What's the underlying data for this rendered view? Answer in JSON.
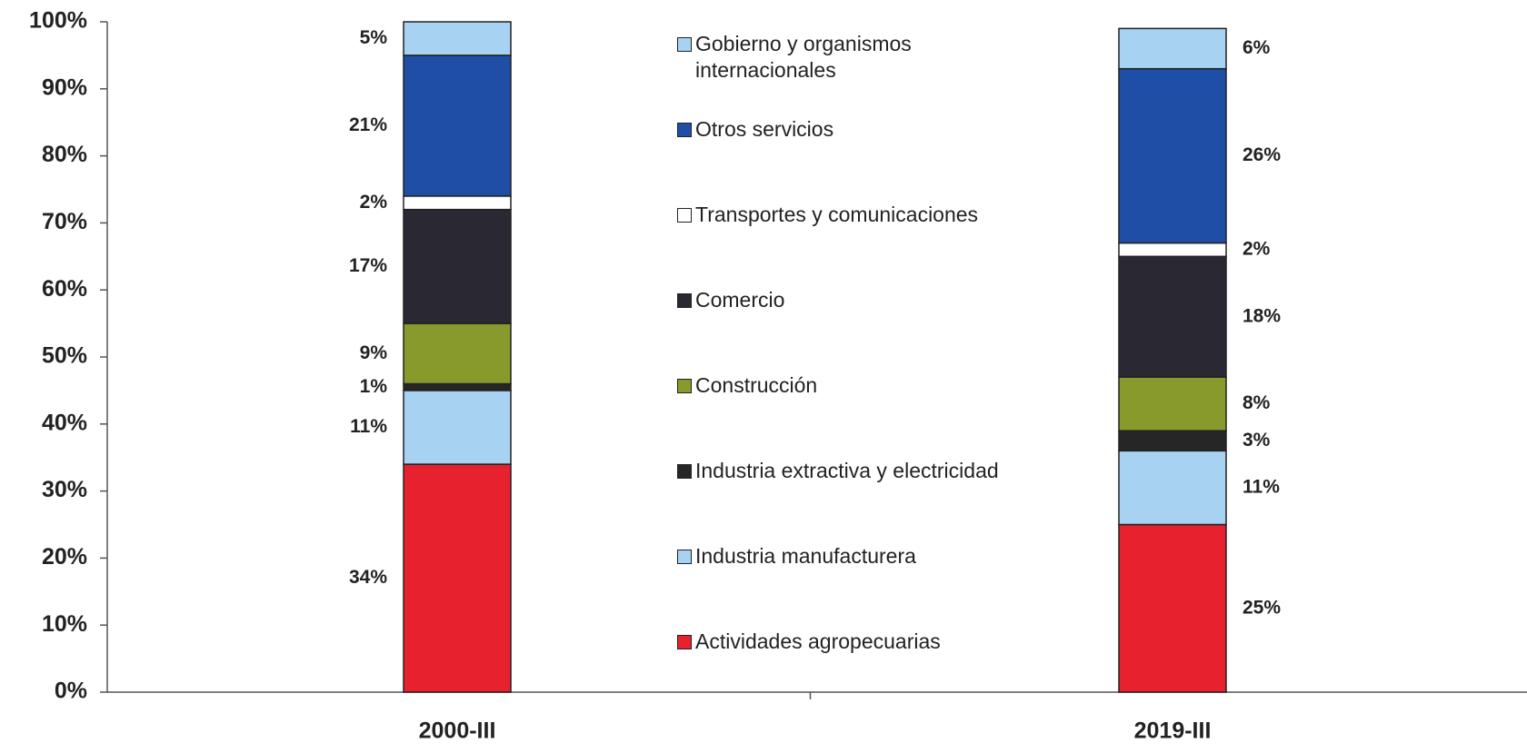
{
  "chart_data": {
    "type": "stacked-bar",
    "categories": [
      "2000-III",
      "2019-III"
    ],
    "series": [
      {
        "name": "Actividades agropecuarias",
        "color": "#e8212f",
        "values": [
          34,
          25
        ],
        "value_labels": [
          "34%",
          "25%"
        ]
      },
      {
        "name": "Industria manufacturera",
        "color": "#a8d2f1",
        "values": [
          11,
          11
        ],
        "value_labels": [
          "11%",
          "11%"
        ]
      },
      {
        "name": "Industria extractiva y electricidad",
        "color": "#262626",
        "values": [
          1,
          3
        ],
        "value_labels": [
          "1%",
          "3%"
        ]
      },
      {
        "name": "Construcción",
        "color": "#889a2c",
        "values": [
          9,
          8
        ],
        "value_labels": [
          "9%",
          "8%"
        ]
      },
      {
        "name": "Comercio",
        "color": "#2a2833",
        "values": [
          17,
          18
        ],
        "value_labels": [
          "17%",
          "18%"
        ]
      },
      {
        "name": "Transportes y comunicaciones",
        "color": "#ffffff",
        "values": [
          2,
          2
        ],
        "value_labels": [
          "2%",
          "2%"
        ]
      },
      {
        "name": "Otros servicios",
        "color": "#1f4ea6",
        "values": [
          21,
          26
        ],
        "value_labels": [
          "21%",
          "26%"
        ]
      },
      {
        "name": "Gobierno y organismos\ninternacionales",
        "color": "#a8d2f1",
        "values": [
          5,
          6
        ],
        "value_labels": [
          "5%",
          "6%"
        ]
      }
    ],
    "ylim": [
      0,
      100
    ],
    "yticks": [
      {
        "value": 0,
        "label": "0%"
      },
      {
        "value": 10,
        "label": "10%"
      },
      {
        "value": 20,
        "label": "20%"
      },
      {
        "value": 30,
        "label": "30%"
      },
      {
        "value": 40,
        "label": "40%"
      },
      {
        "value": 50,
        "label": "50%"
      },
      {
        "value": 60,
        "label": "60%"
      },
      {
        "value": 70,
        "label": "70%"
      },
      {
        "value": 80,
        "label": "80%"
      },
      {
        "value": 90,
        "label": "90%"
      },
      {
        "value": 100,
        "label": "100%"
      }
    ],
    "grid": false,
    "legend": "center"
  }
}
